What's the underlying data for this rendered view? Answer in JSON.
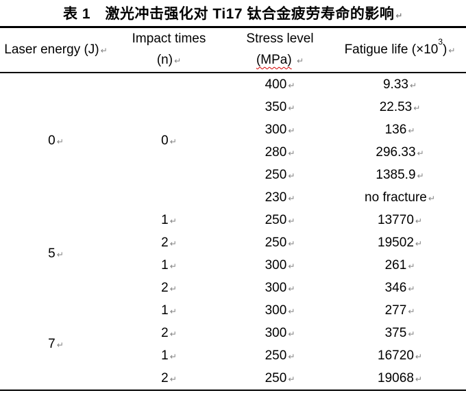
{
  "glyphs": {
    "return_mark": "↵"
  },
  "colors": {
    "text": "#000000",
    "mark_gray": "#808080",
    "spellcheck_squiggle": "#d40000",
    "border": "#000000",
    "background": "#ffffff"
  },
  "title": {
    "text": "表 1　激光冲击强化对 Ti17 钛合金疲劳寿命的影响"
  },
  "table": {
    "headers": {
      "laser_energy": "Laser energy (J)",
      "impact_times_line1": "Impact times",
      "impact_times_line2": "(n)",
      "stress_line1": "Stress level",
      "stress_line2": "(MPa)",
      "fatigue_pre": "Fatigue life (×10",
      "fatigue_sup": "3",
      "fatigue_post": ")"
    },
    "rows": [
      {
        "laser": "0",
        "impact": "0",
        "stress": "400",
        "life": "9.33"
      },
      {
        "stress": "350",
        "life": "22.53"
      },
      {
        "stress": "300",
        "life": "136"
      },
      {
        "stress": "280",
        "life": "296.33"
      },
      {
        "stress": "250",
        "life": "1385.9"
      },
      {
        "stress": "230",
        "life": "no fracture"
      },
      {
        "laser": "5",
        "impact": "1",
        "stress": "250",
        "life": "13770"
      },
      {
        "impact": "2",
        "stress": "250",
        "life": "19502"
      },
      {
        "impact": "1",
        "stress": "300",
        "life": "261"
      },
      {
        "impact": "2",
        "stress": "300",
        "life": "346"
      },
      {
        "laser": "7",
        "impact": "1",
        "stress": "300",
        "life": "277"
      },
      {
        "impact": "2",
        "stress": "300",
        "life": "375"
      },
      {
        "impact": "1",
        "stress": "250",
        "life": "16720"
      },
      {
        "impact": "2",
        "stress": "250",
        "life": "19068"
      }
    ]
  }
}
